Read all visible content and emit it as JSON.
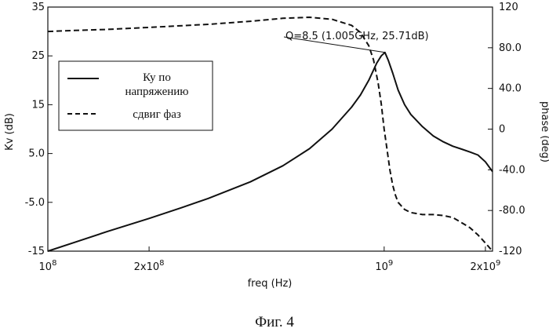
{
  "chart_data": {
    "type": "line",
    "caption": "Фиг. 4",
    "xlabel": "freq (Hz)",
    "ylabel_left": "Kv (dB)",
    "ylabel_right": "phase (deg)",
    "x_scale": "log",
    "xlim": [
      100000000,
      2100000000
    ],
    "ylim_left": [
      -15,
      35
    ],
    "ylim_right": [
      -120,
      120
    ],
    "x_ticks": [
      {
        "value": 100000000,
        "base": "10",
        "exp": "8"
      },
      {
        "value": 200000000,
        "base": "2x10",
        "exp": "8"
      },
      {
        "value": 1000000000,
        "base": "10",
        "exp": "9"
      },
      {
        "value": 2000000000,
        "base": "2x10",
        "exp": "9"
      }
    ],
    "y_left_ticks": [
      {
        "value": 35,
        "label": "35"
      },
      {
        "value": 25,
        "label": "25"
      },
      {
        "value": 15,
        "label": "15"
      },
      {
        "value": 5,
        "label": "5.0"
      },
      {
        "value": -5,
        "label": "-5.0"
      },
      {
        "value": -15,
        "label": "-15"
      }
    ],
    "y_right_ticks": [
      {
        "value": 120,
        "label": "120"
      },
      {
        "value": 80,
        "label": "80.0"
      },
      {
        "value": 40,
        "label": "40.0"
      },
      {
        "value": 0,
        "label": "0"
      },
      {
        "value": -40,
        "label": "-40.0"
      },
      {
        "value": -80,
        "label": "-80.0"
      },
      {
        "value": -120,
        "label": "-120"
      }
    ],
    "legend": {
      "placement": "upper-left",
      "entries": [
        {
          "lines": [
            "Ку по",
            "напряжению"
          ],
          "style": "solid"
        },
        {
          "lines": [
            "сдвиг фаз"
          ],
          "style": "dashed"
        }
      ]
    },
    "annotation": {
      "text": "Q=8.5 (1.005GHz, 25.71dB)",
      "x": 1005000000,
      "y": 25.71
    },
    "series": [
      {
        "style": "solid",
        "axis": "left",
        "x": [
          100000000,
          120000000,
          150000000,
          200000000,
          250000000,
          300000000,
          400000000,
          500000000,
          600000000,
          700000000,
          800000000,
          850000000,
          900000000,
          950000000,
          980000000,
          1005000000,
          1030000000,
          1060000000,
          1100000000,
          1150000000,
          1200000000,
          1300000000,
          1400000000,
          1500000000,
          1600000000,
          1700000000,
          1800000000,
          1900000000,
          2000000000,
          2100000000
        ],
        "y": [
          -15,
          -13.2,
          -11,
          -8.3,
          -6.1,
          -4.2,
          -0.8,
          2.5,
          6,
          10,
          14.5,
          17,
          20,
          23.5,
          25,
          25.71,
          24,
          21.5,
          18,
          15,
          13,
          10.5,
          8.6,
          7.4,
          6.5,
          5.9,
          5.3,
          4.7,
          3.3,
          1.3
        ]
      },
      {
        "style": "dashed",
        "axis": "right",
        "x": [
          100000000,
          120000000,
          150000000,
          200000000,
          300000000,
          400000000,
          500000000,
          600000000,
          700000000,
          800000000,
          850000000,
          900000000,
          930000000,
          960000000,
          980000000,
          1000000000,
          1020000000,
          1040000000,
          1060000000,
          1080000000,
          1100000000,
          1150000000,
          1200000000,
          1300000000,
          1400000000,
          1500000000,
          1600000000,
          1700000000,
          1800000000,
          1900000000,
          2000000000,
          2100000000
        ],
        "y": [
          96,
          97,
          98,
          100,
          103,
          106,
          109,
          110,
          108,
          102,
          95,
          82,
          68,
          45,
          25,
          0,
          -20,
          -40,
          -55,
          -65,
          -72,
          -79,
          -82,
          -84,
          -84,
          -85,
          -87,
          -92,
          -97,
          -104,
          -112,
          -122
        ]
      }
    ]
  }
}
